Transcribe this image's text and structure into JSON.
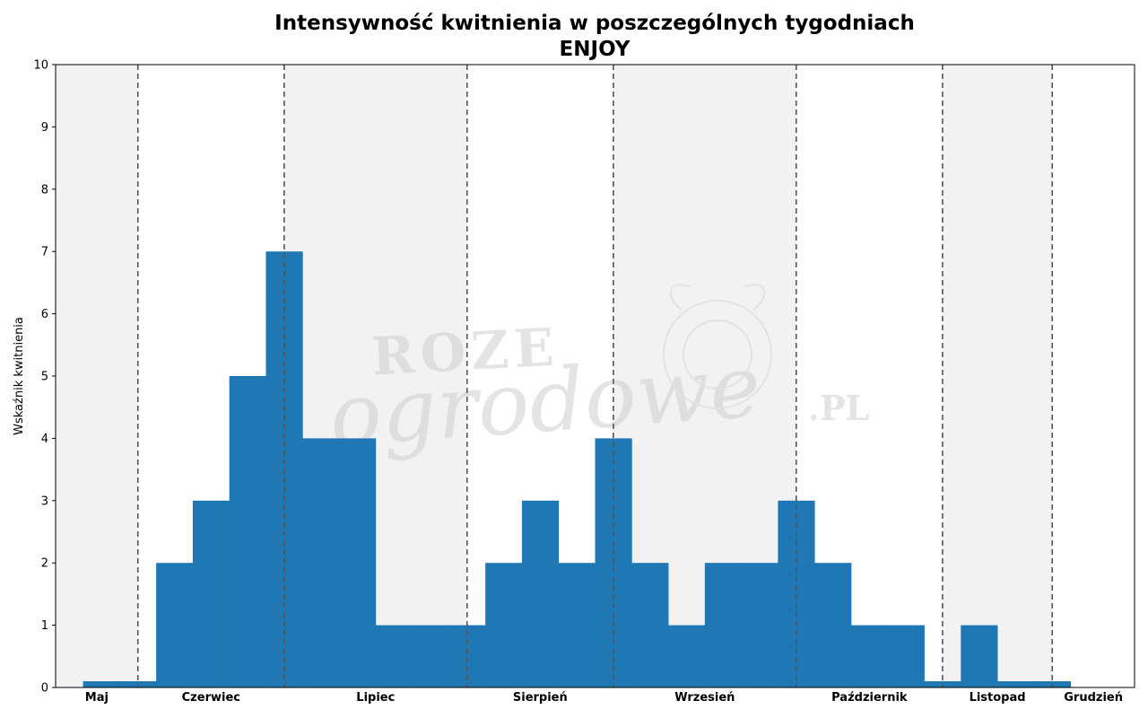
{
  "chart_data": {
    "type": "bar",
    "title": "Intensywność kwitnienia w poszczególnych tygodniach",
    "subtitle": "ENJOY",
    "ylabel": "Wskaźnik kwitnienia",
    "xlabel": "",
    "ylim": [
      0,
      10
    ],
    "yticks": [
      0,
      1,
      2,
      3,
      4,
      5,
      6,
      7,
      8,
      9,
      10
    ],
    "grid": false,
    "legend": "none",
    "bar_color": "#1f77b4",
    "shade_color": "#f2f2f2",
    "divider_color": "#555555",
    "week_range": [
      -1.25,
      28.25
    ],
    "week_values": [
      0.1,
      0.1,
      2,
      3,
      5,
      7,
      4,
      4,
      1,
      1,
      1,
      2,
      3,
      2,
      4,
      2,
      1,
      2,
      2,
      3,
      2,
      1,
      1,
      0.1,
      1,
      0.1,
      0.1
    ],
    "months": [
      {
        "name": "Maj",
        "start": -1.25,
        "end": 1,
        "shaded": true
      },
      {
        "name": "Czerwiec",
        "start": 1,
        "end": 5,
        "shaded": false
      },
      {
        "name": "Lipiec",
        "start": 5,
        "end": 10,
        "shaded": true
      },
      {
        "name": "Sierpień",
        "start": 10,
        "end": 14,
        "shaded": false
      },
      {
        "name": "Wrzesień",
        "start": 14,
        "end": 19,
        "shaded": true
      },
      {
        "name": "Październik",
        "start": 19,
        "end": 23,
        "shaded": false
      },
      {
        "name": "Listopad",
        "start": 23,
        "end": 26,
        "shaded": true
      },
      {
        "name": "Grudzień",
        "start": 26,
        "end": 28.25,
        "shaded": false
      }
    ]
  },
  "watermark": {
    "line1": "ROZE",
    "line2": "ogrodowe",
    "suffix": ".PL"
  }
}
